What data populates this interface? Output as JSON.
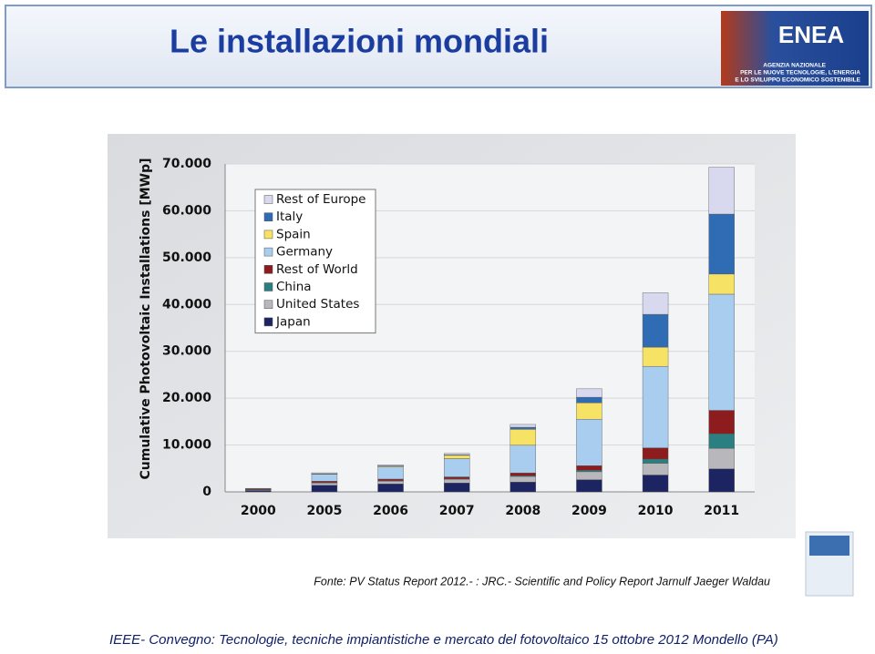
{
  "header": {
    "title": "Le installazioni mondiali"
  },
  "logo": {
    "name": "ENEA",
    "text": [
      "AGENZIA NAZIONALE",
      "PER LE NUOVE TECNOLOGIE, L'ENERGIA",
      "E LO SVILUPPO ECONOMICO SOSTENIBILE"
    ]
  },
  "chart_data": {
    "type": "stacked_bar",
    "y_label": "Cumulative Photovoltaic Installations [MWp]",
    "categories": [
      "2000",
      "2005",
      "2006",
      "2007",
      "2008",
      "2009",
      "2010",
      "2011"
    ],
    "series": [
      {
        "name": "Japan",
        "color": "#1c2462",
        "values": [
          300,
          1400,
          1700,
          1900,
          2100,
          2600,
          3600,
          4900
        ]
      },
      {
        "name": "United States",
        "color": "#b8b8bc",
        "values": [
          150,
          500,
          600,
          800,
          1200,
          1700,
          2500,
          4400
        ]
      },
      {
        "name": "China",
        "color": "#2b7f80",
        "values": [
          0,
          70,
          80,
          100,
          150,
          300,
          900,
          3100
        ]
      },
      {
        "name": "Rest of World",
        "color": "#8c1c1e",
        "values": [
          150,
          300,
          350,
          400,
          600,
          1000,
          2400,
          5000
        ]
      },
      {
        "name": "Germany",
        "color": "#a9cdef",
        "values": [
          100,
          1500,
          2600,
          3900,
          5900,
          9900,
          17400,
          24800
        ]
      },
      {
        "name": "Spain",
        "color": "#f6e264",
        "values": [
          0,
          50,
          150,
          700,
          3400,
          3500,
          4100,
          4300
        ]
      },
      {
        "name": "Italy",
        "color": "#2f6cb4",
        "values": [
          0,
          50,
          50,
          100,
          450,
          1200,
          7000,
          12800
        ]
      },
      {
        "name": "Rest of Europe",
        "color": "#d8d8ee",
        "values": [
          50,
          200,
          250,
          300,
          600,
          1800,
          4600,
          10000
        ]
      }
    ],
    "ylim": [
      0,
      70000
    ],
    "yticks": [
      {
        "value": 0,
        "label": "0"
      },
      {
        "value": 10000,
        "label": "10.000"
      },
      {
        "value": 20000,
        "label": "20.000"
      },
      {
        "value": 30000,
        "label": "30.000"
      },
      {
        "value": 40000,
        "label": "40.000"
      },
      {
        "value": 50000,
        "label": "50.000"
      },
      {
        "value": 60000,
        "label": "60.000"
      },
      {
        "value": 70000,
        "label": "70.000"
      }
    ],
    "grid": true,
    "legend": "top-left"
  },
  "source": "Fonte: PV Status Report  2012.- : JRC.- Scientific and Policy Report Jarnulf Jaeger Waldau",
  "footer": "IEEE- Convegno: Tecnologie, tecniche impiantistiche e mercato del fotovoltaico 15 ottobre 2012  Mondello (PA)"
}
